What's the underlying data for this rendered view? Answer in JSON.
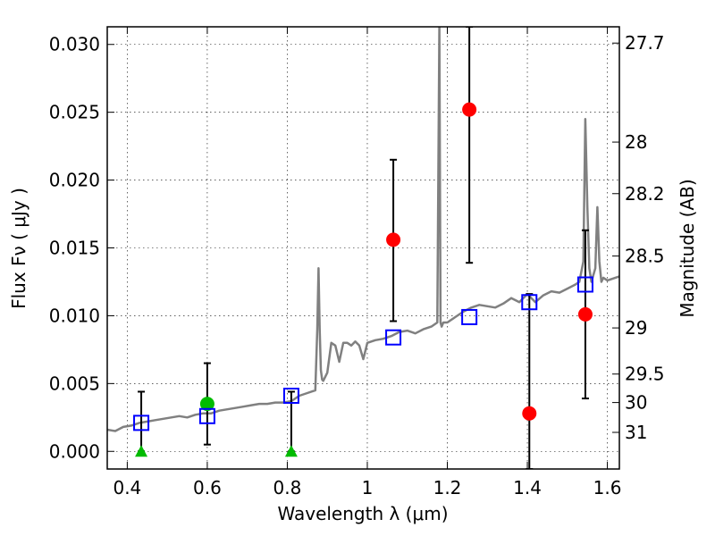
{
  "chart_data": {
    "type": "scatter",
    "title": "",
    "xlabel": "Wavelength  λ (μm)",
    "ylabel": "Flux  Fν  ( μJy )",
    "ylabel_right": "Magnitude (AB)",
    "xlim": [
      0.35,
      1.63
    ],
    "ylim": [
      -0.0013,
      0.0313
    ],
    "grid": true,
    "grid_style": "dotted",
    "x_ticks": [
      {
        "value": 0.4,
        "label": "0.4"
      },
      {
        "value": 0.6,
        "label": "0.6"
      },
      {
        "value": 0.8,
        "label": "0.8"
      },
      {
        "value": 1.0,
        "label": "1"
      },
      {
        "value": 1.2,
        "label": "1.2"
      },
      {
        "value": 1.4,
        "label": "1.4"
      },
      {
        "value": 1.6,
        "label": "1.6"
      }
    ],
    "y_ticks": [
      {
        "value": 0.0,
        "label": "0.000"
      },
      {
        "value": 0.005,
        "label": "0.005"
      },
      {
        "value": 0.01,
        "label": "0.010"
      },
      {
        "value": 0.015,
        "label": "0.015"
      },
      {
        "value": 0.02,
        "label": "0.020"
      },
      {
        "value": 0.025,
        "label": "0.025"
      },
      {
        "value": 0.03,
        "label": "0.030"
      }
    ],
    "right_ticks": [
      {
        "label": "27.7",
        "flux": 0.0301
      },
      {
        "label": "28",
        "flux": 0.0228
      },
      {
        "label": "28.2",
        "flux": 0.019
      },
      {
        "label": "28.5",
        "flux": 0.0144
      },
      {
        "label": "29",
        "flux": 0.0091
      },
      {
        "label": "29.5",
        "flux": 0.0057
      },
      {
        "label": "30",
        "flux": 0.0036
      },
      {
        "label": "31",
        "flux": 0.0014
      }
    ],
    "series": [
      {
        "kind": "line",
        "color": "#808080",
        "x": [
          0.35,
          0.37,
          0.39,
          0.41,
          0.43,
          0.45,
          0.47,
          0.49,
          0.51,
          0.53,
          0.55,
          0.57,
          0.59,
          0.61,
          0.63,
          0.65,
          0.67,
          0.69,
          0.71,
          0.73,
          0.75,
          0.77,
          0.79,
          0.81,
          0.83,
          0.85,
          0.87,
          0.875,
          0.878,
          0.881,
          0.884,
          0.887,
          0.89,
          0.9,
          0.91,
          0.92,
          0.93,
          0.94,
          0.95,
          0.96,
          0.97,
          0.98,
          0.99,
          1.0,
          1.02,
          1.04,
          1.06,
          1.08,
          1.1,
          1.12,
          1.14,
          1.16,
          1.175,
          1.18,
          1.183,
          1.186,
          1.19,
          1.2,
          1.22,
          1.24,
          1.26,
          1.28,
          1.3,
          1.32,
          1.34,
          1.36,
          1.38,
          1.4,
          1.42,
          1.44,
          1.46,
          1.48,
          1.5,
          1.52,
          1.53,
          1.54,
          1.545,
          1.55,
          1.555,
          1.56,
          1.57,
          1.575,
          1.58,
          1.585,
          1.59,
          1.6,
          1.62,
          1.63
        ],
        "values": [
          0.0016,
          0.0015,
          0.0018,
          0.0019,
          0.0021,
          0.0022,
          0.0023,
          0.0024,
          0.0025,
          0.0026,
          0.0025,
          0.0027,
          0.0028,
          0.0028,
          0.003,
          0.0031,
          0.0032,
          0.0033,
          0.0034,
          0.0035,
          0.0035,
          0.0036,
          0.0036,
          0.0037,
          0.0041,
          0.0043,
          0.0045,
          0.009,
          0.0135,
          0.009,
          0.006,
          0.0053,
          0.0052,
          0.0058,
          0.008,
          0.0078,
          0.0066,
          0.008,
          0.008,
          0.0078,
          0.0081,
          0.0078,
          0.0068,
          0.008,
          0.0082,
          0.0083,
          0.0085,
          0.0088,
          0.0089,
          0.0087,
          0.009,
          0.0092,
          0.0095,
          0.0315,
          0.0095,
          0.0092,
          0.0095,
          0.0095,
          0.0099,
          0.0103,
          0.0106,
          0.0108,
          0.0107,
          0.0106,
          0.0109,
          0.0113,
          0.011,
          0.0116,
          0.011,
          0.0115,
          0.0118,
          0.0117,
          0.012,
          0.0123,
          0.0125,
          0.014,
          0.0245,
          0.018,
          0.0135,
          0.0125,
          0.0135,
          0.018,
          0.014,
          0.0125,
          0.0128,
          0.0126,
          0.0128,
          0.0129
        ]
      },
      {
        "kind": "points",
        "marker": "circle",
        "color": "#ff0000",
        "x": [
          1.065,
          1.255,
          1.405,
          1.545
        ],
        "values": [
          0.0156,
          0.0252,
          0.0028,
          0.0101
        ],
        "err_low": [
          0.0096,
          0.0139,
          -0.0013,
          0.0039
        ],
        "err_high": [
          0.0215,
          0.0313,
          0.0116,
          0.0163
        ]
      },
      {
        "kind": "points",
        "marker": "circle",
        "color": "#00bb00",
        "x": [
          0.6
        ],
        "values": [
          0.0035
        ],
        "err_low": [
          0.0005
        ],
        "err_high": [
          0.0065
        ]
      },
      {
        "kind": "points",
        "marker": "triangle",
        "color": "#00bb00",
        "x": [
          0.435,
          0.81
        ],
        "values": [
          0.0,
          0.0
        ],
        "err_low": [
          0.0,
          0.0
        ],
        "err_high": [
          0.0044,
          0.0044
        ]
      },
      {
        "kind": "points",
        "marker": "open-square",
        "color": "#0000ff",
        "x": [
          0.435,
          0.6,
          0.81,
          1.065,
          1.255,
          1.405,
          1.545
        ],
        "values": [
          0.0021,
          0.0026,
          0.0041,
          0.0084,
          0.0099,
          0.011,
          0.0123
        ]
      }
    ]
  }
}
